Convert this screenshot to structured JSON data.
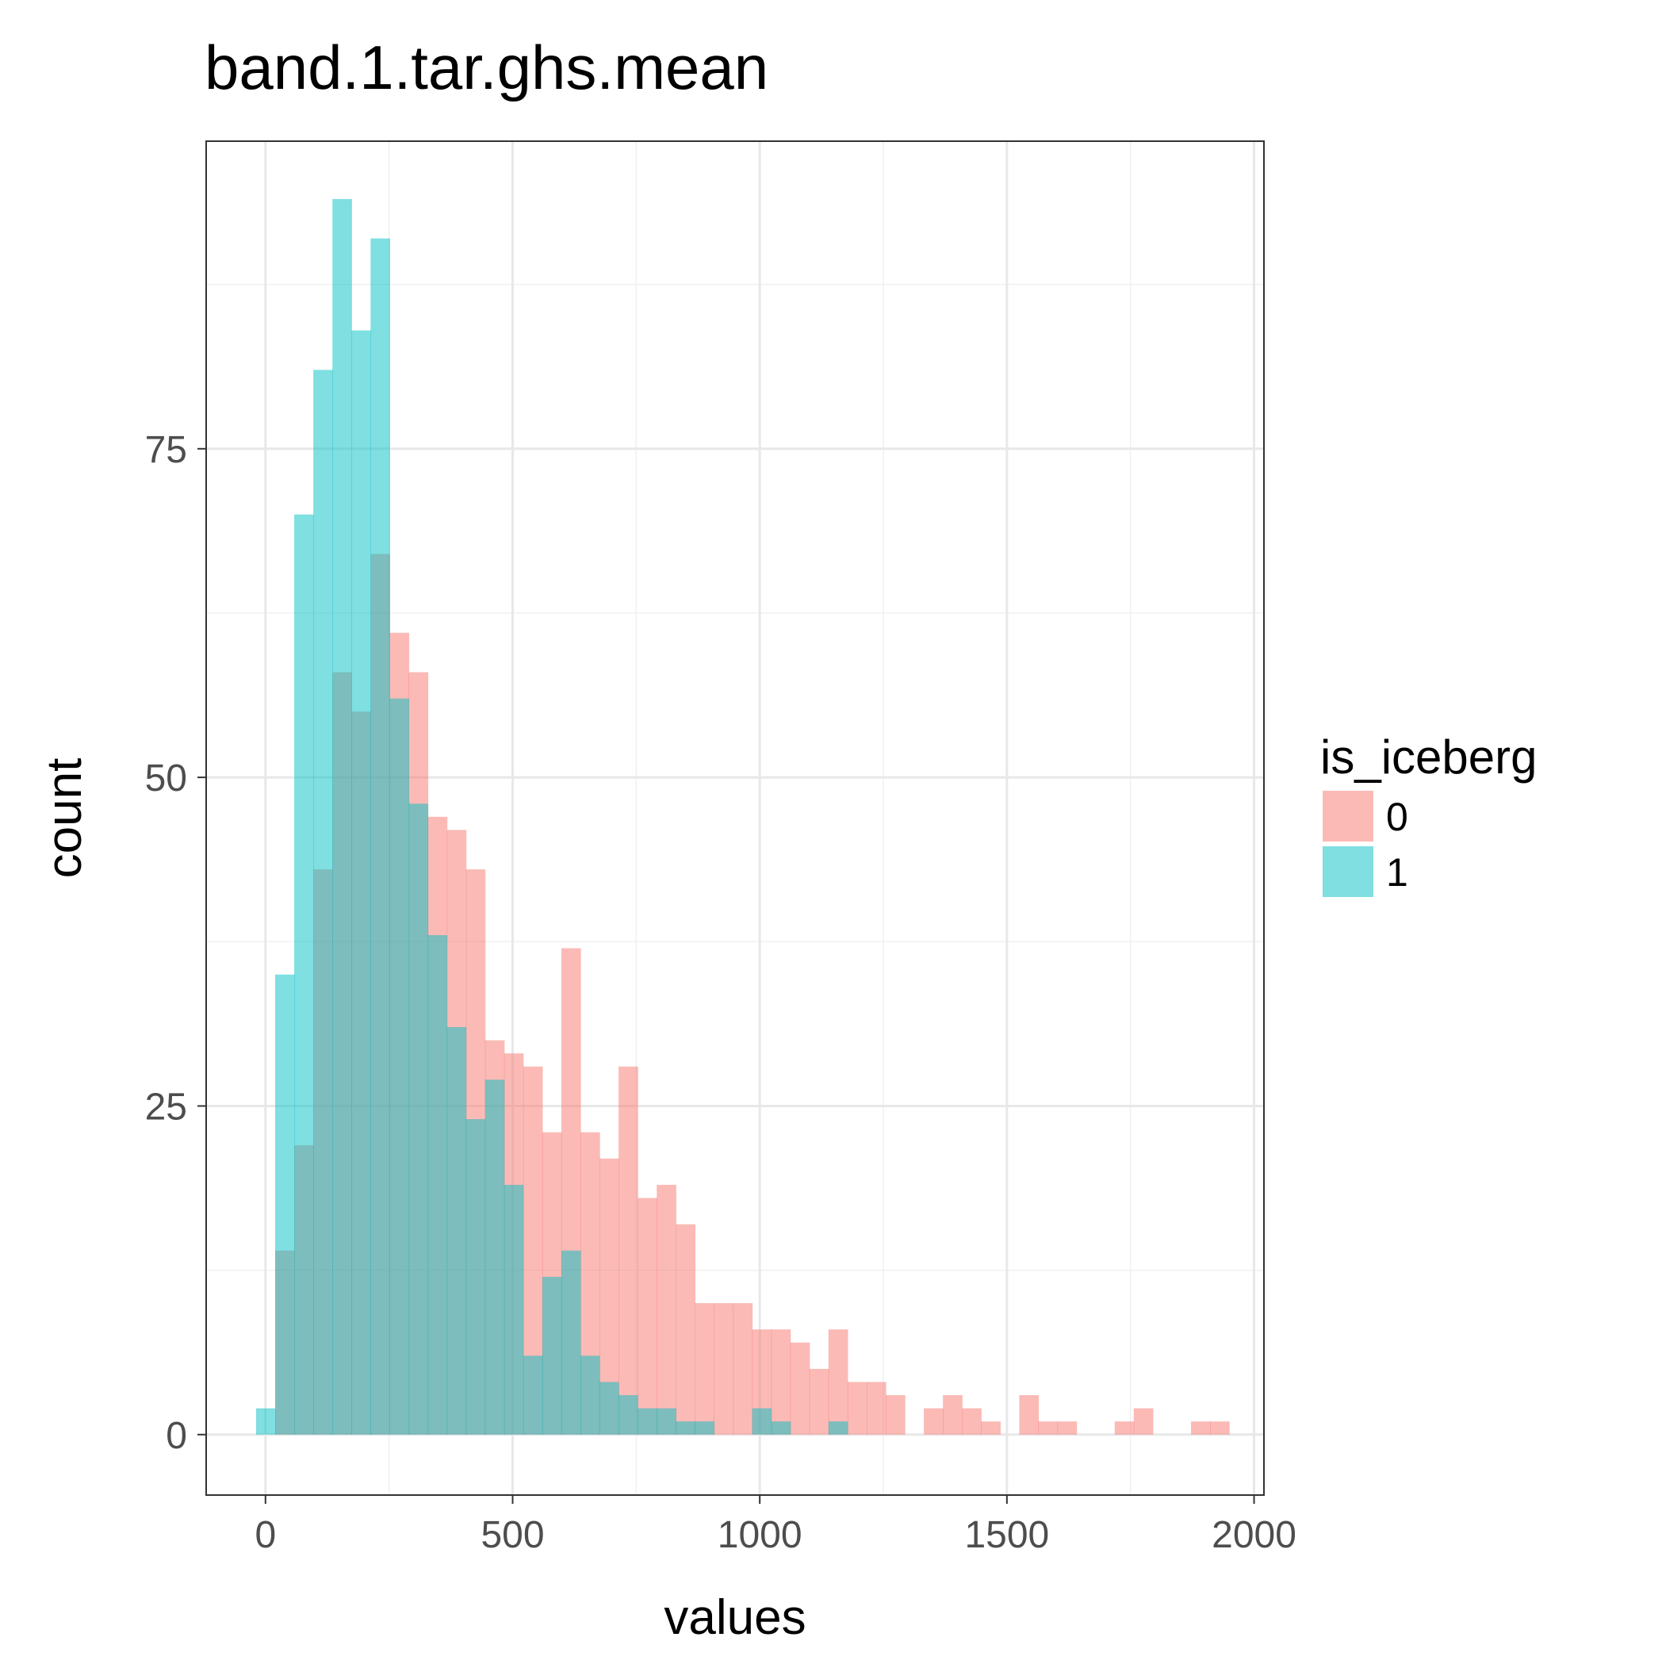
{
  "chart_data": {
    "type": "histogram",
    "title": "band.1.tar.ghs.mean",
    "xlabel": "values",
    "ylabel": "count",
    "xlim": [
      -120,
      2020
    ],
    "ylim": [
      -4.6,
      98.4
    ],
    "x_ticks": [
      0,
      500,
      1000,
      1500,
      2000
    ],
    "x_tick_labels": [
      "0",
      "500",
      "1000",
      "1500",
      "2000"
    ],
    "y_ticks": [
      0,
      25,
      50,
      75
    ],
    "y_tick_labels": [
      "0",
      "25",
      "50",
      "75"
    ],
    "y_minor_ticks": [
      12.5,
      37.5,
      62.5,
      87.5
    ],
    "x_minor_ticks": [
      250,
      750,
      1250,
      1750
    ],
    "grid": true,
    "legend": {
      "title": "is_iceberg",
      "position": "right",
      "entries": [
        "0",
        "1"
      ]
    },
    "bin_start": -19,
    "bin_width": 38.6,
    "bar_opacity": 0.5,
    "series": [
      {
        "name": "0",
        "color": "#F8766D",
        "counts": [
          0,
          14,
          22,
          43,
          58,
          55,
          67,
          61,
          58,
          47,
          46,
          43,
          30,
          29,
          28,
          23,
          37,
          23,
          21,
          28,
          18,
          19,
          16,
          10,
          10,
          10,
          8,
          8,
          7,
          5,
          8,
          4,
          4,
          3,
          0,
          2,
          3,
          2,
          1,
          0,
          3,
          1,
          1,
          0,
          0,
          1,
          2,
          0,
          0,
          1,
          1
        ]
      },
      {
        "name": "1",
        "color": "#00BFC4",
        "counts": [
          2,
          35,
          70,
          81,
          94,
          84,
          91,
          56,
          48,
          38,
          31,
          24,
          27,
          19,
          6,
          12,
          14,
          6,
          4,
          3,
          2,
          2,
          1,
          1,
          0,
          0,
          2,
          1,
          0,
          0,
          1
        ]
      }
    ]
  }
}
